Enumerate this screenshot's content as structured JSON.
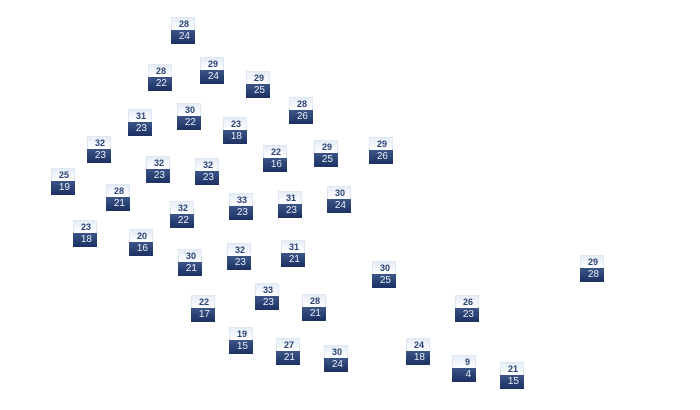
{
  "markers": [
    {
      "high": "28",
      "low": "24"
    },
    {
      "high": "28",
      "low": "22"
    },
    {
      "high": "29",
      "low": "24"
    },
    {
      "high": "29",
      "low": "25"
    },
    {
      "high": "28",
      "low": "26"
    },
    {
      "high": "31",
      "low": "23"
    },
    {
      "high": "30",
      "low": "22"
    },
    {
      "high": "23",
      "low": "18"
    },
    {
      "high": "32",
      "low": "23"
    },
    {
      "high": "32",
      "low": "23"
    },
    {
      "high": "32",
      "low": "23"
    },
    {
      "high": "22",
      "low": "16"
    },
    {
      "high": "29",
      "low": "25"
    },
    {
      "high": "29",
      "low": "26"
    },
    {
      "high": "25",
      "low": "19"
    },
    {
      "high": "28",
      "low": "21"
    },
    {
      "high": "32",
      "low": "22"
    },
    {
      "high": "33",
      "low": "23"
    },
    {
      "high": "31",
      "low": "23"
    },
    {
      "high": "30",
      "low": "24"
    },
    {
      "high": "23",
      "low": "18"
    },
    {
      "high": "20",
      "low": "16"
    },
    {
      "high": "30",
      "low": "21"
    },
    {
      "high": "32",
      "low": "23"
    },
    {
      "high": "31",
      "low": "21"
    },
    {
      "high": "30",
      "low": "25"
    },
    {
      "high": "29",
      "low": "28"
    },
    {
      "high": "22",
      "low": "17"
    },
    {
      "high": "33",
      "low": "23"
    },
    {
      "high": "28",
      "low": "21"
    },
    {
      "high": "26",
      "low": "23"
    },
    {
      "high": "19",
      "low": "15"
    },
    {
      "high": "27",
      "low": "21"
    },
    {
      "high": "30",
      "low": "24"
    },
    {
      "high": "24",
      "low": "18"
    },
    {
      "high": "9",
      "low": "4"
    },
    {
      "high": "21",
      "low": "15"
    }
  ],
  "colors": {
    "high_text": "#2a4272",
    "low_bg": "#1c3062",
    "low_text": "#e8eef8"
  }
}
